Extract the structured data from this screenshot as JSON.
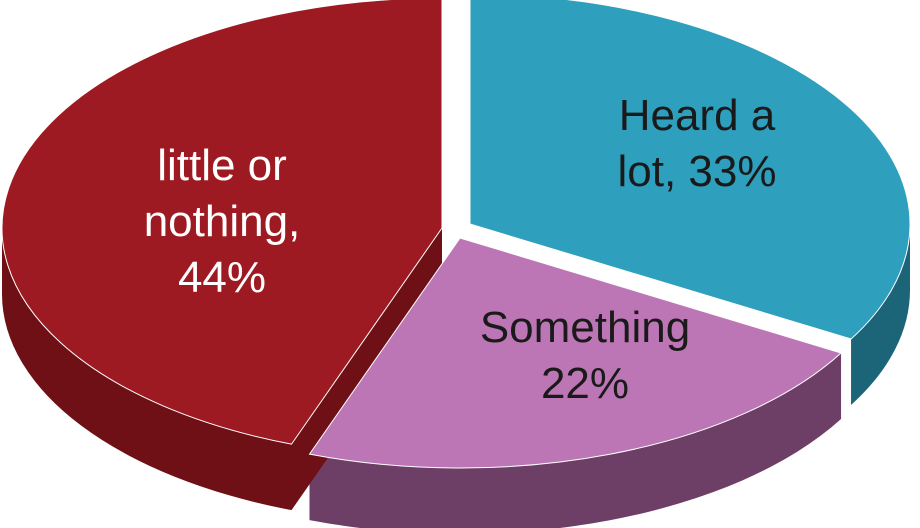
{
  "chart_data": {
    "type": "pie",
    "title": "",
    "slices": [
      {
        "key": "heard-a-lot",
        "label_lines": [
          "Heard a",
          "lot, 33%"
        ],
        "value": 33,
        "color": "#2e9fbd",
        "side_color": "#1c6478",
        "label_color": "#1a1a1a"
      },
      {
        "key": "something",
        "label_lines": [
          "Something",
          "22%"
        ],
        "value": 22,
        "color": "#bd76b5",
        "side_color": "#6e3f66",
        "label_color": "#1a1a1a"
      },
      {
        "key": "little-or-nothing",
        "label_lines": [
          "little or",
          "nothing,",
          "44%"
        ],
        "value": 44,
        "color": "#9e1a22",
        "side_color": "#6f1016",
        "label_color": "#ffffff"
      }
    ]
  }
}
